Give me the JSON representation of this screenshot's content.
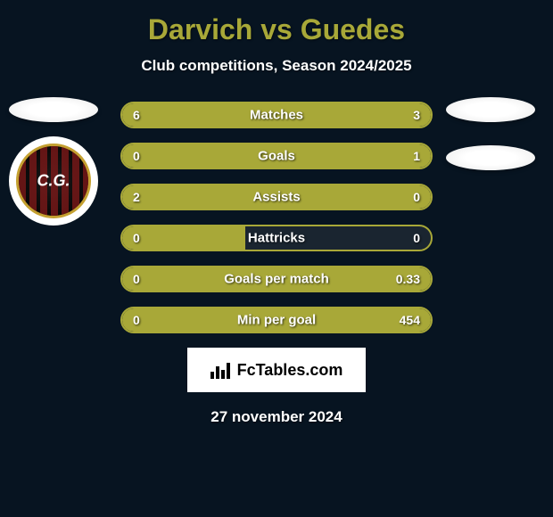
{
  "title": "Darvich vs Guedes",
  "subtitle": "Club competitions, Season 2024/2025",
  "date": "27 november 2024",
  "footer_brand": "FcTables.com",
  "colors": {
    "accent": "#a8a838",
    "background": "#071421",
    "bar_bg": "#1a2530",
    "text": "#ffffff"
  },
  "club_badge": {
    "initials": "C.G.",
    "border_color": "#c4a030",
    "stripe_color": "#8b1a1a"
  },
  "stats": [
    {
      "label": "Matches",
      "left_value": "6",
      "right_value": "3",
      "left_width_pct": 66.7,
      "right_width_pct": 33.3
    },
    {
      "label": "Goals",
      "left_value": "0",
      "right_value": "1",
      "left_width_pct": 18,
      "right_width_pct": 82
    },
    {
      "label": "Assists",
      "left_value": "2",
      "right_value": "0",
      "left_width_pct": 100,
      "right_width_pct": 0
    },
    {
      "label": "Hattricks",
      "left_value": "0",
      "right_value": "0",
      "left_width_pct": 40,
      "right_width_pct": 0
    },
    {
      "label": "Goals per match",
      "left_value": "0",
      "right_value": "0.33",
      "left_width_pct": 5,
      "right_width_pct": 95
    },
    {
      "label": "Min per goal",
      "left_value": "0",
      "right_value": "454",
      "left_width_pct": 5,
      "right_width_pct": 95
    }
  ]
}
